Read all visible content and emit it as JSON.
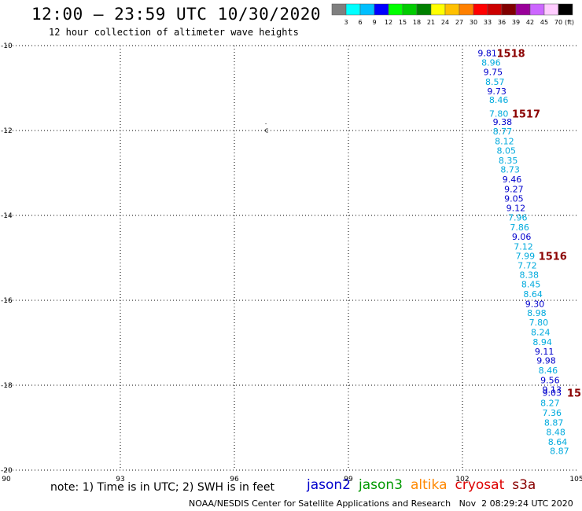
{
  "header": {
    "title": "12:00 – 23:59 UTC 10/30/2020",
    "subtitle": "12 hour collection of altimeter wave heights"
  },
  "color_scale": {
    "colors": [
      "#7f7f7f",
      "#00ffff",
      "#00bfff",
      "#0000ff",
      "#00ff00",
      "#00cc00",
      "#008000",
      "#ffff00",
      "#ffc000",
      "#ff8000",
      "#ff0000",
      "#cc0000",
      "#800000",
      "#990099",
      "#cc66ff",
      "#ffccff",
      "#000000"
    ],
    "labels": [
      "3",
      "6",
      "9",
      "12",
      "15",
      "18",
      "21",
      "24",
      "27",
      "30",
      "33",
      "36",
      "39",
      "42",
      "45",
      "70",
      "(ft)"
    ]
  },
  "note": "note: 1) Time is in UTC; 2) SWH is in feet",
  "satellites": [
    {
      "name": "jason2",
      "color": "#0000cc"
    },
    {
      "name": "jason3",
      "color": "#009900"
    },
    {
      "name": "altika",
      "color": "#ff8800"
    },
    {
      "name": "cryosat",
      "color": "#dd0000"
    },
    {
      "name": "s3a",
      "color": "#880000"
    }
  ],
  "footer": "NOAA/NESDIS Center for Satellite Applications and Research   Nov  2 08:29:24 UTC 2020",
  "chart_data": {
    "type": "scatter",
    "title": "12:00 – 23:59 UTC 10/30/2020",
    "xlim": [
      90,
      105
    ],
    "ylim": [
      -20,
      -10
    ],
    "x_ticks": [
      90,
      93,
      96,
      99,
      102,
      105
    ],
    "y_ticks": [
      -10,
      -12,
      -14,
      -16,
      -18,
      -20
    ],
    "x_tick_labels": [
      "90",
      "93",
      "96",
      "99",
      "102",
      "105"
    ],
    "y_tick_labels": [
      "-10",
      "-12",
      "-14",
      "-16",
      "-18",
      "-20"
    ],
    "grid": true,
    "series": [
      {
        "name": "jason2",
        "color_key": "swh",
        "points": [
          {
            "lon": 102.4,
            "lat": -10.18,
            "swh": "9.81",
            "color": "#0000cc"
          },
          {
            "lon": 102.5,
            "lat": -10.4,
            "swh": "8.96",
            "color": "#00aadd"
          },
          {
            "lon": 102.55,
            "lat": -10.62,
            "swh": "9.75",
            "color": "#0000cc"
          },
          {
            "lon": 102.6,
            "lat": -10.85,
            "swh": "8.57",
            "color": "#00aadd"
          },
          {
            "lon": 102.65,
            "lat": -11.07,
            "swh": "9.73",
            "color": "#0000cc"
          },
          {
            "lon": 102.7,
            "lat": -11.28,
            "swh": "8.46",
            "color": "#00aadd"
          },
          {
            "lon": 102.7,
            "lat": -11.6,
            "swh": "7.80",
            "color": "#00aadd"
          },
          {
            "lon": 102.8,
            "lat": -11.8,
            "swh": "9.38",
            "color": "#0000cc"
          },
          {
            "lon": 102.8,
            "lat": -12.02,
            "swh": "8.77",
            "color": "#00aadd"
          },
          {
            "lon": 102.85,
            "lat": -12.25,
            "swh": "8.12",
            "color": "#00aadd"
          },
          {
            "lon": 102.9,
            "lat": -12.47,
            "swh": "8.05",
            "color": "#00aadd"
          },
          {
            "lon": 102.95,
            "lat": -12.7,
            "swh": "8.35",
            "color": "#00aadd"
          },
          {
            "lon": 103.0,
            "lat": -12.92,
            "swh": "8.73",
            "color": "#00aadd"
          },
          {
            "lon": 103.05,
            "lat": -13.15,
            "swh": "9.46",
            "color": "#0000cc"
          },
          {
            "lon": 103.1,
            "lat": -13.38,
            "swh": "9.27",
            "color": "#0000cc"
          },
          {
            "lon": 103.1,
            "lat": -13.6,
            "swh": "9.05",
            "color": "#0000cc"
          },
          {
            "lon": 103.15,
            "lat": -13.82,
            "swh": "9.12",
            "color": "#0000cc"
          },
          {
            "lon": 103.2,
            "lat": -14.05,
            "swh": "7.96",
            "color": "#00aadd"
          },
          {
            "lon": 103.25,
            "lat": -14.28,
            "swh": "7.86",
            "color": "#00aadd"
          },
          {
            "lon": 103.3,
            "lat": -14.5,
            "swh": "9.06",
            "color": "#0000cc"
          },
          {
            "lon": 103.35,
            "lat": -14.73,
            "swh": "7.12",
            "color": "#00aadd"
          },
          {
            "lon": 103.4,
            "lat": -14.95,
            "swh": "7.99",
            "color": "#00aadd"
          },
          {
            "lon": 103.45,
            "lat": -15.18,
            "swh": "7.72",
            "color": "#00aadd"
          },
          {
            "lon": 103.5,
            "lat": -15.4,
            "swh": "8.38",
            "color": "#00aadd"
          },
          {
            "lon": 103.55,
            "lat": -15.62,
            "swh": "8.45",
            "color": "#00aadd"
          },
          {
            "lon": 103.6,
            "lat": -15.85,
            "swh": "8.64",
            "color": "#00aadd"
          },
          {
            "lon": 103.65,
            "lat": -16.08,
            "swh": "9.30",
            "color": "#0000cc"
          },
          {
            "lon": 103.7,
            "lat": -16.3,
            "swh": "8.98",
            "color": "#00aadd"
          },
          {
            "lon": 103.75,
            "lat": -16.52,
            "swh": "7.80",
            "color": "#00aadd"
          },
          {
            "lon": 103.8,
            "lat": -16.75,
            "swh": "8.24",
            "color": "#00aadd"
          },
          {
            "lon": 103.85,
            "lat": -16.98,
            "swh": "8.94",
            "color": "#00aadd"
          },
          {
            "lon": 103.9,
            "lat": -17.2,
            "swh": "9.11",
            "color": "#0000cc"
          },
          {
            "lon": 103.95,
            "lat": -17.42,
            "swh": "9.98",
            "color": "#0000cc"
          },
          {
            "lon": 104.0,
            "lat": -17.65,
            "swh": "8.46",
            "color": "#00aadd"
          },
          {
            "lon": 104.05,
            "lat": -17.88,
            "swh": "9.56",
            "color": "#0000cc"
          },
          {
            "lon": 104.1,
            "lat": -18.1,
            "swh": "9.13",
            "color": "#0000cc"
          },
          {
            "lon": 104.1,
            "lat": -18.18,
            "swh": "9.03",
            "color": "#0000cc"
          },
          {
            "lon": 104.05,
            "lat": -18.42,
            "swh": "8.27",
            "color": "#00aadd"
          },
          {
            "lon": 104.1,
            "lat": -18.65,
            "swh": "7.36",
            "color": "#00aadd"
          },
          {
            "lon": 104.15,
            "lat": -18.88,
            "swh": "8.87",
            "color": "#00aadd"
          },
          {
            "lon": 104.2,
            "lat": -19.1,
            "swh": "8.48",
            "color": "#00aadd"
          },
          {
            "lon": 104.25,
            "lat": -19.33,
            "swh": "8.64",
            "color": "#00aadd"
          },
          {
            "lon": 104.3,
            "lat": -19.55,
            "swh": "8.87",
            "color": "#00aadd"
          }
        ]
      }
    ],
    "time_labels": [
      {
        "lon": 102.9,
        "lat": -10.18,
        "text": "1518"
      },
      {
        "lon": 103.3,
        "lat": -11.6,
        "text": "1517"
      },
      {
        "lon": 104.0,
        "lat": -14.95,
        "text": "1516"
      },
      {
        "lon": 104.75,
        "lat": -18.18,
        "text": "15"
      }
    ],
    "small_marks": [
      {
        "lon": 96.8,
        "lat": -11.85,
        "text": "."
      },
      {
        "lon": 96.8,
        "lat": -12.05,
        "text": "c"
      }
    ]
  }
}
